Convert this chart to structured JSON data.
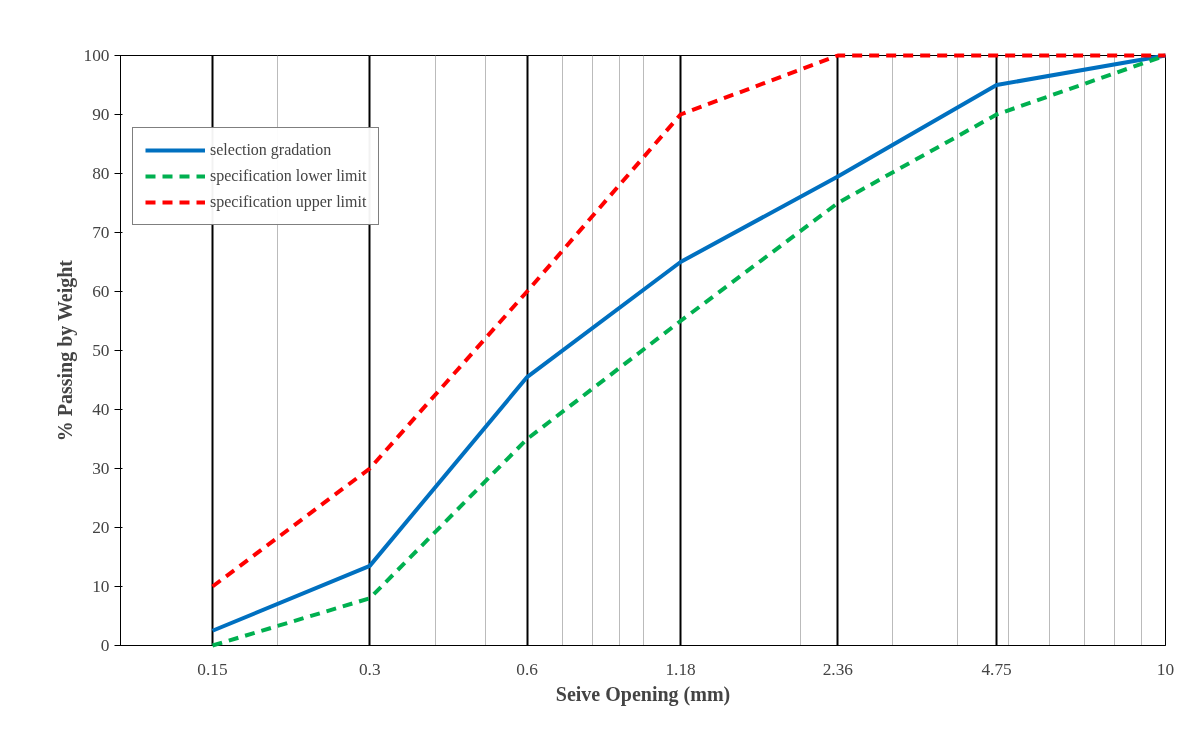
{
  "chart_data": {
    "type": "line",
    "xlabel": "Seive Opening (mm)",
    "ylabel": "% Passing by Weight",
    "log": "x",
    "xlim": [
      0.1,
      10
    ],
    "ylim": [
      0,
      100
    ],
    "xticks": [
      0.15,
      0.3,
      0.6,
      1.18,
      2.36,
      4.75,
      10
    ],
    "yticks": [
      0,
      10,
      20,
      30,
      40,
      50,
      60,
      70,
      80,
      90,
      100
    ],
    "grid": "x",
    "legend": "top left",
    "x": [
      0.15,
      0.3,
      0.6,
      1.18,
      2.36,
      4.75,
      10
    ],
    "series": [
      {
        "name": "selection gradation",
        "color": "#0070c0",
        "line_style": "solid",
        "values": [
          2.5,
          13.5,
          45.5,
          65,
          79.5,
          95,
          100
        ]
      },
      {
        "name": "specification lower limit",
        "color": "#00b050",
        "line_style": "dashed",
        "values": [
          0,
          8,
          35,
          55,
          75,
          90,
          100
        ]
      },
      {
        "name": "specification upper limit",
        "color": "#ff0000",
        "line_style": "dashed",
        "values": [
          10,
          30,
          60,
          90,
          100,
          100,
          100
        ]
      }
    ]
  }
}
